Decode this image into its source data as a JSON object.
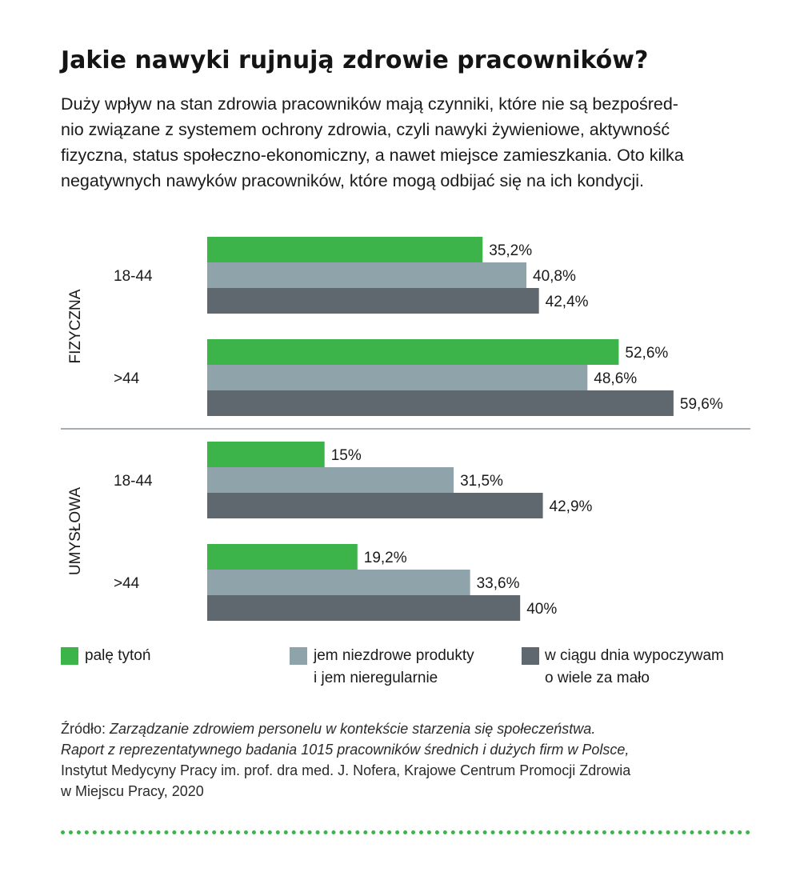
{
  "title": "Jakie nawyki rujnują zdrowie pracowników?",
  "intro_lines": [
    "Duży wpływ na stan zdrowia pracowników mają czynniki, które nie są bezpośred-",
    "nio związane z systemem ochrony zdrowia, czyli nawyki żywieniowe, aktywność",
    "fizyczna, status społeczno-ekonomiczny, a nawet miejsce zamieszkania. Oto kilka",
    "negatywnych nawyków pracowników, które mogą odbijać się na ich kondycji."
  ],
  "colors": {
    "green": "#3cb44a",
    "light_gray": "#8fa3ab",
    "dark_gray": "#5f686e",
    "divider": "#8a9296"
  },
  "chart_data": {
    "type": "bar",
    "orientation": "horizontal",
    "groups": [
      {
        "label": "FIZYCZNA",
        "categories": [
          {
            "label": "18-44",
            "values": [
              35.2,
              40.8,
              42.4
            ],
            "value_labels": [
              "35,2%",
              "40,8%",
              "42,4%"
            ]
          },
          {
            "label": ">44",
            "values": [
              52.6,
              48.6,
              59.6
            ],
            "value_labels": [
              "52,6%",
              "48,6%",
              "59,6%"
            ]
          }
        ]
      },
      {
        "label": "UMYSŁOWA",
        "categories": [
          {
            "label": "18-44",
            "values": [
              15,
              31.5,
              42.9
            ],
            "value_labels": [
              "15%",
              "31,5%",
              "42,9%"
            ]
          },
          {
            "label": ">44",
            "values": [
              19.2,
              33.6,
              40
            ],
            "value_labels": [
              "19,2%",
              "33,6%",
              "40%"
            ]
          }
        ]
      }
    ],
    "series": [
      {
        "name": "palę tytoń",
        "color": "#3cb44a"
      },
      {
        "name": "jem niezdrowe produkty i jem nieregularnie",
        "color": "#8fa3ab"
      },
      {
        "name": "w ciągu dnia wypoczywam o wiele za mało",
        "color": "#5f686e"
      }
    ],
    "title": "",
    "xlabel": "",
    "ylabel": ""
  },
  "legend": [
    {
      "lines": [
        "palę tytoń"
      ]
    },
    {
      "lines": [
        "jem niezdrowe produkty",
        "i jem nieregularnie"
      ]
    },
    {
      "lines": [
        "w ciągu dnia wypoczywam",
        "o wiele za mało"
      ]
    }
  ],
  "source": {
    "prefix": "Źródło: ",
    "italic_line1": "Zarządzanie zdrowiem personelu w kontekście starzenia się społeczeństwa.",
    "italic_line2": "Raport z reprezentatywnego badania 1015 pracowników średnich i dużych firm w Polsce,",
    "line3": "Instytut Medycyny Pracy im. prof. dra med. J. Nofera, Krajowe Centrum Promocji Zdrowia",
    "line4": "w Miejscu Pracy, 2020"
  }
}
